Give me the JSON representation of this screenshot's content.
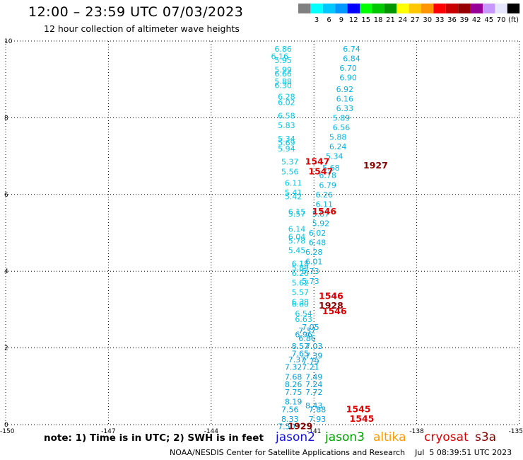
{
  "title": "12:00 – 23:59 UTC 07/03/2023",
  "subtitle": "12 hour collection of altimeter wave heights",
  "note": "note: 1) Time is in UTC; 2) SWH is in feet",
  "footer": "NOAA/NESDIS Center for Satellite Applications and Research    Jul  5 08:39:51 UTC 2023",
  "satellites": [
    {
      "name": "jason2",
      "color": "#1414dc"
    },
    {
      "name": "jason3",
      "color": "#00a000"
    },
    {
      "name": "altika",
      "color": "#ff9900"
    },
    {
      "name": "cryosat",
      "color": "#dd0000"
    },
    {
      "name": "s3a",
      "color": "#880000"
    }
  ],
  "colorbar": {
    "unit": "(ft)",
    "bins": [
      {
        "label": "",
        "color": "#808080"
      },
      {
        "label": "3",
        "color": "#00ffff"
      },
      {
        "label": "6",
        "color": "#00c8ff"
      },
      {
        "label": "9",
        "color": "#0096ff"
      },
      {
        "label": "12",
        "color": "#0000ff"
      },
      {
        "label": "15",
        "color": "#00ff00"
      },
      {
        "label": "18",
        "color": "#00c800"
      },
      {
        "label": "21",
        "color": "#009600"
      },
      {
        "label": "24",
        "color": "#ffff00"
      },
      {
        "label": "27",
        "color": "#ffc800"
      },
      {
        "label": "30",
        "color": "#ff9600"
      },
      {
        "label": "33",
        "color": "#ff0000"
      },
      {
        "label": "36",
        "color": "#c80000"
      },
      {
        "label": "39",
        "color": "#960000"
      },
      {
        "label": "42",
        "color": "#960096"
      },
      {
        "label": "45",
        "color": "#c896ff"
      },
      {
        "label": "70",
        "color": "#e6e6ff"
      },
      {
        "label": "",
        "color": "#000000"
      }
    ]
  },
  "chart_data": {
    "type": "scatter",
    "title": "12:00 – 23:59 UTC 07/03/2023",
    "xlim": [
      -150,
      -135
    ],
    "ylim": [
      0,
      10
    ],
    "xticks": [
      "-150",
      "-147",
      "-144",
      "-141",
      "-138",
      "-135"
    ],
    "yticks": [
      "0",
      "2",
      "4",
      "6",
      "8",
      "10"
    ],
    "grid": true,
    "series": [
      {
        "color": "#00c8e6",
        "points": [
          [
            -141.9,
            9.8,
            "6.86"
          ],
          [
            -142.0,
            9.6,
            "6.16"
          ],
          [
            -141.9,
            9.5,
            "5.95"
          ],
          [
            -141.9,
            9.25,
            "5.99"
          ],
          [
            -141.9,
            9.15,
            "6.66"
          ],
          [
            -141.9,
            8.95,
            "5.88"
          ],
          [
            -141.9,
            8.85,
            "6.30"
          ],
          [
            -141.8,
            8.55,
            "6.28"
          ],
          [
            -141.8,
            8.4,
            "6.02"
          ],
          [
            -141.8,
            8.05,
            "6.58"
          ],
          [
            -141.8,
            7.8,
            "5.83"
          ],
          [
            -141.8,
            7.45,
            "5.34"
          ],
          [
            -141.8,
            7.35,
            "5.69"
          ],
          [
            -141.8,
            7.2,
            "5.94"
          ],
          [
            -141.7,
            6.85,
            "5.37"
          ],
          [
            -141.7,
            6.6,
            "5.56"
          ],
          [
            -141.6,
            6.3,
            "6.11"
          ],
          [
            -141.6,
            6.05,
            "5.41"
          ],
          [
            -141.6,
            5.95,
            "5.42"
          ],
          [
            -141.5,
            5.55,
            "6.15"
          ],
          [
            -141.5,
            5.5,
            "5.57"
          ],
          [
            -141.5,
            5.1,
            "6.14"
          ],
          [
            -141.5,
            4.9,
            "6.04"
          ],
          [
            -141.5,
            4.8,
            "5.78"
          ],
          [
            -141.5,
            4.55,
            "5.45"
          ],
          [
            -141.4,
            4.2,
            "6.18"
          ],
          [
            -141.4,
            4.1,
            "5.89"
          ],
          [
            -141.4,
            3.95,
            "6.20"
          ],
          [
            -141.4,
            3.7,
            "5.62"
          ],
          [
            -141.4,
            3.45,
            "5.57"
          ],
          [
            -141.4,
            3.2,
            "6.38"
          ],
          [
            -141.4,
            3.15,
            "6.60"
          ],
          [
            -141.3,
            2.9,
            "6.54"
          ],
          [
            -141.3,
            2.75,
            "6.63"
          ]
        ]
      },
      {
        "color": "#00b4e6",
        "points": [
          [
            -139.9,
            9.8,
            "6.74"
          ],
          [
            -139.9,
            9.55,
            "6.84"
          ],
          [
            -140.0,
            9.3,
            "6.70"
          ],
          [
            -140.0,
            9.05,
            "6.90"
          ],
          [
            -140.1,
            8.75,
            "6.92"
          ],
          [
            -140.1,
            8.5,
            "6.16"
          ],
          [
            -140.1,
            8.25,
            "6.33"
          ],
          [
            -140.2,
            8.0,
            "5.89"
          ],
          [
            -140.2,
            7.75,
            "6.56"
          ],
          [
            -140.3,
            7.5,
            "5.88"
          ],
          [
            -140.3,
            7.25,
            "6.24"
          ],
          [
            -140.4,
            7.0,
            "5.34"
          ],
          [
            -140.5,
            6.7,
            "5.68"
          ],
          [
            -140.6,
            6.5,
            "6.78"
          ],
          [
            -140.6,
            6.25,
            "6.79"
          ],
          [
            -140.7,
            6.0,
            "6.26"
          ],
          [
            -140.7,
            5.75,
            "6.11"
          ],
          [
            -140.8,
            5.5,
            "5.87"
          ],
          [
            -140.8,
            5.25,
            "5.92"
          ],
          [
            -140.9,
            5.0,
            "6.02"
          ],
          [
            -140.9,
            4.75,
            "6.48"
          ],
          [
            -141.0,
            4.5,
            "6.28"
          ],
          [
            -141.0,
            4.25,
            "6.01"
          ],
          [
            -141.1,
            4.0,
            "5.73"
          ],
          [
            -141.1,
            3.75,
            "5.73"
          ]
        ]
      },
      {
        "color": "#00a0dc",
        "points": [
          [
            -141.1,
            2.55,
            "7.05"
          ],
          [
            -141.2,
            2.45,
            "7.37"
          ],
          [
            -141.3,
            2.35,
            "6.96"
          ],
          [
            -141.2,
            2.25,
            "6.86"
          ],
          [
            -141.4,
            2.05,
            "8.57"
          ],
          [
            -141.0,
            2.05,
            "7.03"
          ],
          [
            -141.4,
            1.85,
            "7.65"
          ],
          [
            -141.0,
            1.8,
            "7.39"
          ],
          [
            -141.5,
            1.7,
            "7.37"
          ],
          [
            -141.1,
            1.65,
            "7.79"
          ],
          [
            -141.6,
            1.5,
            "7.32"
          ],
          [
            -141.1,
            1.5,
            "7.21"
          ],
          [
            -141.6,
            1.25,
            "7.68"
          ],
          [
            -141.0,
            1.25,
            "7.49"
          ],
          [
            -141.6,
            1.05,
            "8.26"
          ],
          [
            -141.0,
            1.05,
            "7.24"
          ],
          [
            -141.6,
            0.85,
            "7.75"
          ],
          [
            -141.0,
            0.85,
            "7.72"
          ],
          [
            -141.6,
            0.6,
            "8.19"
          ],
          [
            -141.0,
            0.5,
            "8.43"
          ],
          [
            -141.7,
            0.4,
            "7.56"
          ],
          [
            -140.9,
            0.4,
            "7.88"
          ],
          [
            -141.7,
            0.15,
            "8.33"
          ],
          [
            -140.9,
            0.15,
            "7.93"
          ],
          [
            -141.8,
            -0.05,
            "7.50"
          ]
        ]
      },
      {
        "color": "#dd0000",
        "points": [
          [
            -140.9,
            6.85,
            "1547"
          ],
          [
            -140.8,
            6.6,
            "1547"
          ],
          [
            -140.7,
            5.55,
            "1546"
          ],
          [
            -140.5,
            3.35,
            "1546"
          ],
          [
            -140.4,
            2.95,
            "1546"
          ],
          [
            -139.7,
            0.4,
            "1545"
          ],
          [
            -139.6,
            0.15,
            "1545"
          ]
        ]
      },
      {
        "color": "#880000",
        "points": [
          [
            -139.2,
            6.75,
            "1927"
          ],
          [
            -140.5,
            3.1,
            "1928"
          ],
          [
            -141.4,
            -0.05,
            "1929"
          ]
        ]
      }
    ]
  }
}
